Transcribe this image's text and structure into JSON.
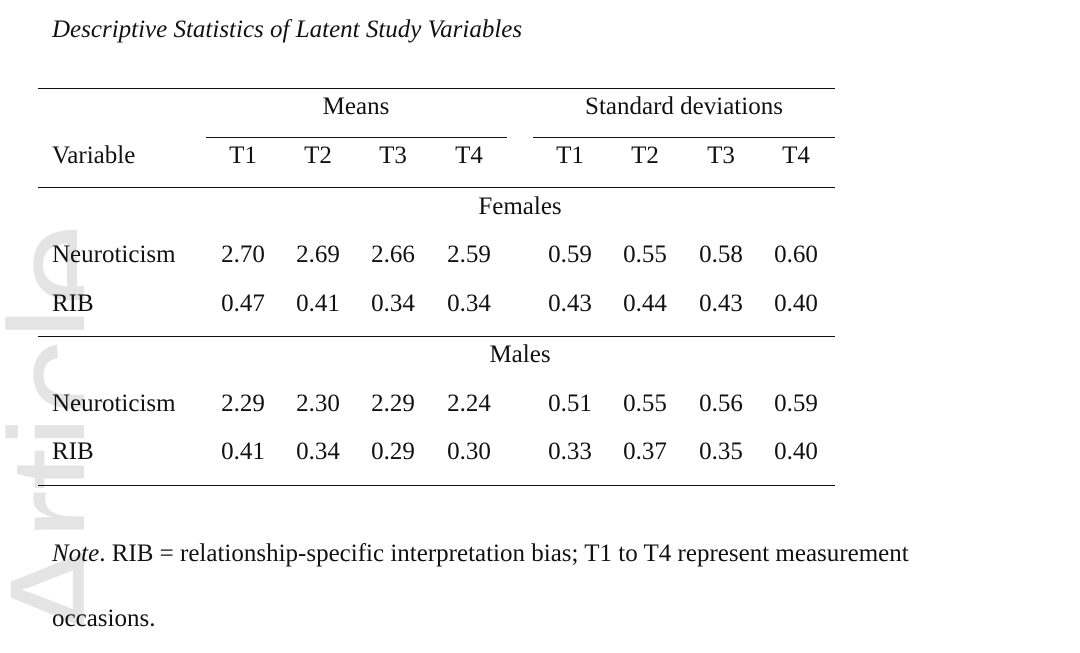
{
  "title": "Descriptive Statistics of Latent Study Variables",
  "watermark": "Article",
  "table": {
    "group_headers": {
      "means": "Means",
      "sd": "Standard deviations"
    },
    "variable_header": "Variable",
    "time_labels": [
      "T1",
      "T2",
      "T3",
      "T4"
    ],
    "sections": [
      {
        "label": "Females",
        "rows": [
          {
            "variable": "Neuroticism",
            "means": [
              "2.70",
              "2.69",
              "2.66",
              "2.59"
            ],
            "sds": [
              "0.59",
              "0.55",
              "0.58",
              "0.60"
            ]
          },
          {
            "variable": "RIB",
            "means": [
              "0.47",
              "0.41",
              "0.34",
              "0.34"
            ],
            "sds": [
              "0.43",
              "0.44",
              "0.43",
              "0.40"
            ]
          }
        ]
      },
      {
        "label": "Males",
        "rows": [
          {
            "variable": "Neuroticism",
            "means": [
              "2.29",
              "2.30",
              "2.29",
              "2.24"
            ],
            "sds": [
              "0.51",
              "0.55",
              "0.56",
              "0.59"
            ]
          },
          {
            "variable": "RIB",
            "means": [
              "0.41",
              "0.34",
              "0.29",
              "0.30"
            ],
            "sds": [
              "0.33",
              "0.37",
              "0.35",
              "0.40"
            ]
          }
        ]
      }
    ]
  },
  "note": {
    "label": "Note",
    "text": ". RIB = relationship-specific interpretation bias; T1 to T4 represent measurement",
    "continuation": "occasions."
  }
}
